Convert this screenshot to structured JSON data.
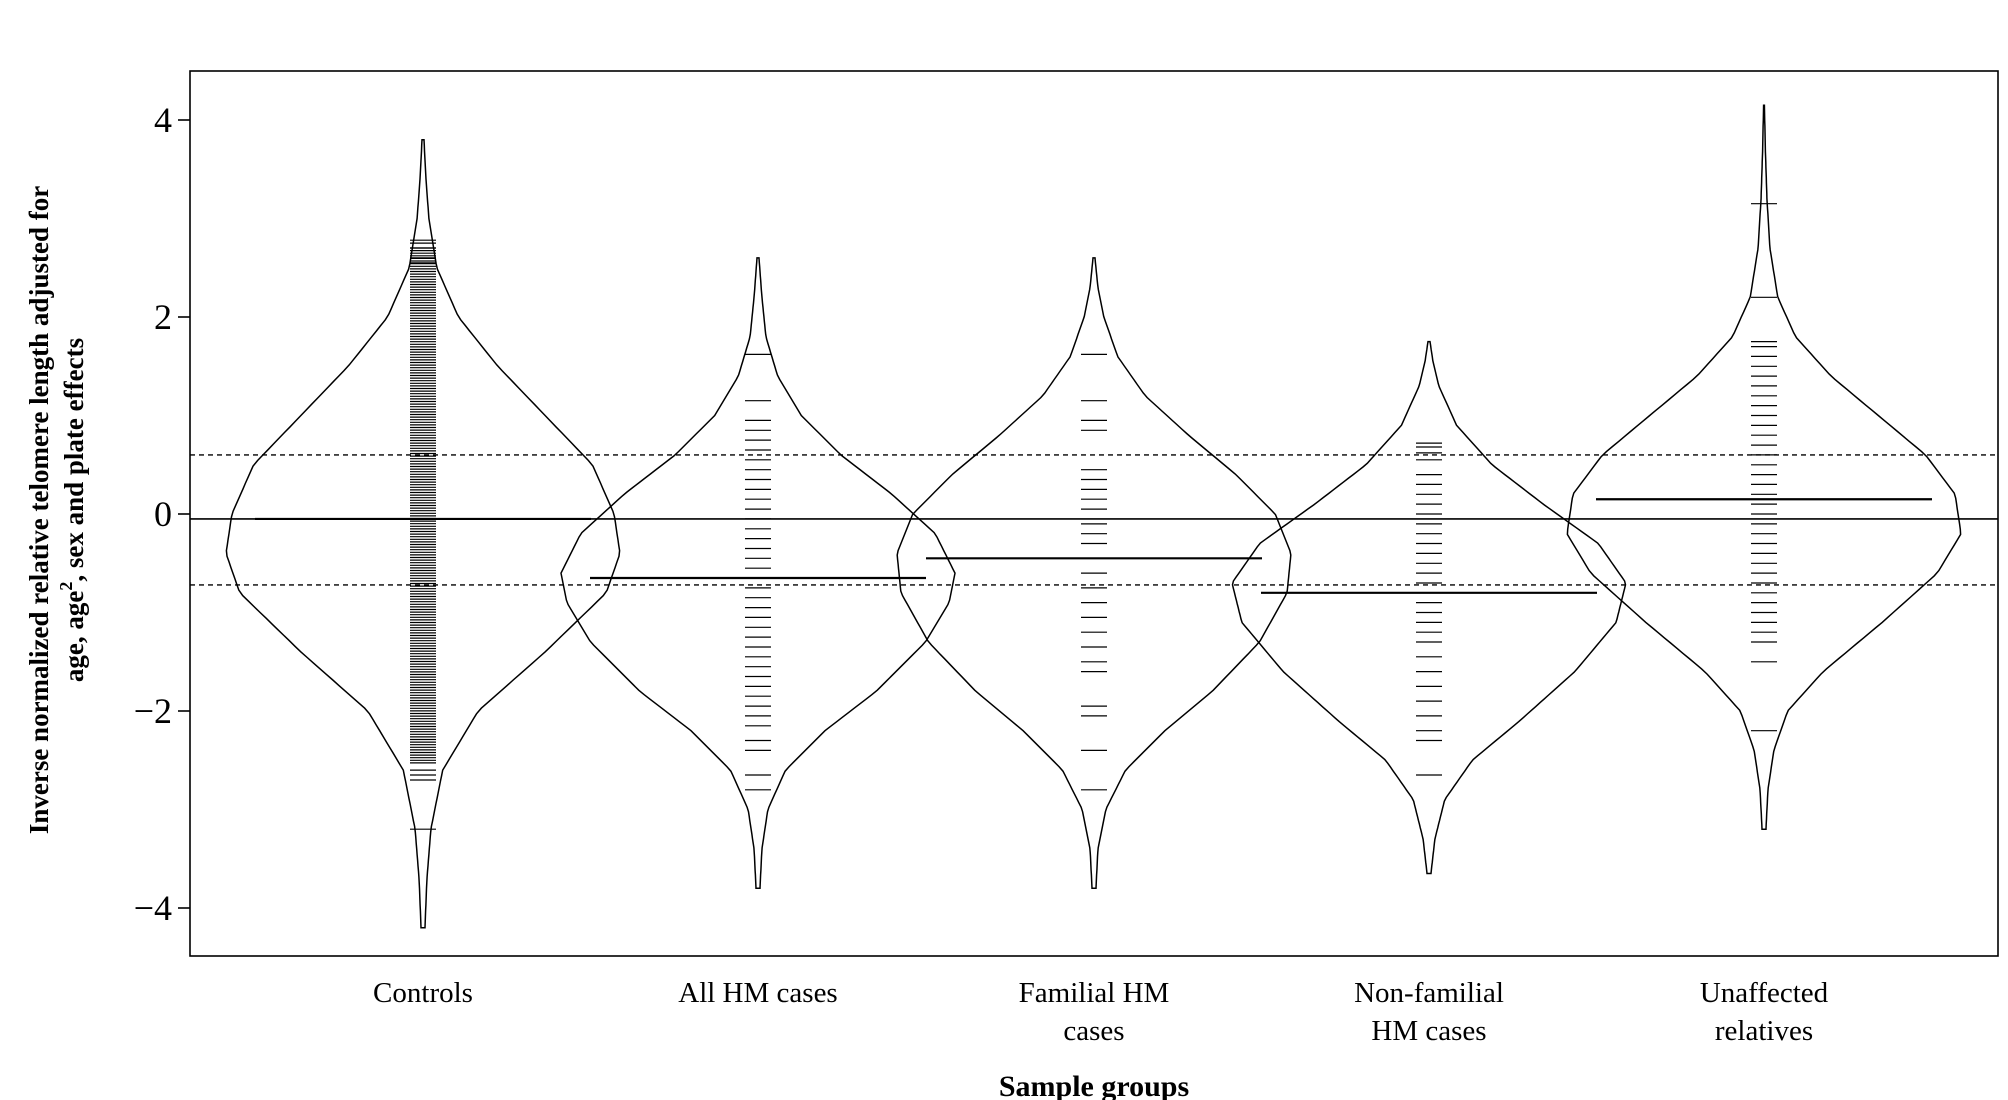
{
  "chart_data": {
    "type": "beanplot",
    "xlabel": "Sample groups",
    "ylabel_line1": "Inverse normalized relative telomere length adjusted for",
    "ylabel_line2_a": "age, age",
    "ylabel_line2_sup": "2",
    "ylabel_line2_b": ", sex and plate effects",
    "ylim": [
      -4.5,
      4.5
    ],
    "yticks": [
      4,
      2,
      0,
      -2,
      -4
    ],
    "ytick_labels": [
      "4",
      "2",
      "0",
      "−2",
      "−4"
    ],
    "overall_mean": -0.05,
    "reference_lines": [
      0.6,
      -0.72
    ],
    "grid": false,
    "groups": [
      {
        "label_lines": [
          "Controls"
        ],
        "mean": -0.05,
        "min": -4.2,
        "max": 3.8,
        "width": 1.0,
        "density": [
          [
            -4.2,
            0.01
          ],
          [
            -3.7,
            0.02
          ],
          [
            -3.2,
            0.04
          ],
          [
            -2.6,
            0.1
          ],
          [
            -2.0,
            0.28
          ],
          [
            -1.4,
            0.62
          ],
          [
            -0.8,
            0.93
          ],
          [
            -0.4,
            1.0
          ],
          [
            0.0,
            0.97
          ],
          [
            0.5,
            0.86
          ],
          [
            1.0,
            0.62
          ],
          [
            1.5,
            0.38
          ],
          [
            2.0,
            0.18
          ],
          [
            2.5,
            0.07
          ],
          [
            3.0,
            0.03
          ],
          [
            3.4,
            0.015
          ],
          [
            3.8,
            0.005
          ]
        ],
        "values": [
          2.78,
          2.75,
          2.7,
          2.6,
          2.55,
          -2.6,
          -2.65,
          -2.7,
          -3.2
        ]
      },
      {
        "label_lines": [
          "All HM cases"
        ],
        "mean": -0.65,
        "min": -3.8,
        "max": 2.6,
        "width": 1.0,
        "density": [
          [
            -3.8,
            0.01
          ],
          [
            -3.4,
            0.02
          ],
          [
            -3.0,
            0.05
          ],
          [
            -2.6,
            0.14
          ],
          [
            -2.2,
            0.34
          ],
          [
            -1.8,
            0.6
          ],
          [
            -1.3,
            0.85
          ],
          [
            -0.9,
            0.97
          ],
          [
            -0.6,
            1.0
          ],
          [
            -0.2,
            0.9
          ],
          [
            0.2,
            0.68
          ],
          [
            0.6,
            0.42
          ],
          [
            1.0,
            0.22
          ],
          [
            1.4,
            0.1
          ],
          [
            1.8,
            0.04
          ],
          [
            2.2,
            0.02
          ],
          [
            2.6,
            0.005
          ]
        ],
        "values": [
          1.62,
          1.15,
          0.95,
          0.85,
          0.75,
          0.65,
          0.55,
          0.45,
          0.35,
          0.25,
          0.15,
          0.05,
          -0.05,
          -0.15,
          -0.25,
          -0.35,
          -0.45,
          -0.55,
          -0.65,
          -0.75,
          -0.85,
          -0.95,
          -1.05,
          -1.15,
          -1.25,
          -1.35,
          -1.45,
          -1.55,
          -1.65,
          -1.75,
          -1.85,
          -1.95,
          -2.05,
          -2.15,
          -2.3,
          -2.4,
          -2.65,
          -2.8
        ]
      },
      {
        "label_lines": [
          "Familial HM",
          "cases"
        ],
        "mean": -0.45,
        "min": -3.8,
        "max": 2.6,
        "width": 1.0,
        "density": [
          [
            -3.8,
            0.01
          ],
          [
            -3.4,
            0.02
          ],
          [
            -3.0,
            0.06
          ],
          [
            -2.6,
            0.16
          ],
          [
            -2.2,
            0.36
          ],
          [
            -1.8,
            0.6
          ],
          [
            -1.3,
            0.84
          ],
          [
            -0.8,
            0.98
          ],
          [
            -0.4,
            1.0
          ],
          [
            0.0,
            0.92
          ],
          [
            0.4,
            0.72
          ],
          [
            0.8,
            0.48
          ],
          [
            1.2,
            0.26
          ],
          [
            1.6,
            0.12
          ],
          [
            2.0,
            0.05
          ],
          [
            2.3,
            0.02
          ],
          [
            2.6,
            0.005
          ]
        ],
        "values": [
          1.62,
          1.15,
          0.95,
          0.85,
          0.45,
          0.35,
          0.25,
          0.15,
          0.05,
          -0.1,
          -0.2,
          -0.3,
          -0.45,
          -0.6,
          -0.75,
          -0.9,
          -1.05,
          -1.2,
          -1.35,
          -1.5,
          -1.6,
          -1.95,
          -2.05,
          -2.4,
          -2.8
        ]
      },
      {
        "label_lines": [
          "Non-familial",
          "HM cases"
        ],
        "mean": -0.8,
        "min": -3.65,
        "max": 1.75,
        "width": 1.0,
        "density": [
          [
            -3.65,
            0.01
          ],
          [
            -3.3,
            0.03
          ],
          [
            -2.9,
            0.08
          ],
          [
            -2.5,
            0.22
          ],
          [
            -2.1,
            0.46
          ],
          [
            -1.6,
            0.74
          ],
          [
            -1.1,
            0.95
          ],
          [
            -0.7,
            1.0
          ],
          [
            -0.3,
            0.86
          ],
          [
            0.1,
            0.58
          ],
          [
            0.5,
            0.32
          ],
          [
            0.9,
            0.14
          ],
          [
            1.3,
            0.05
          ],
          [
            1.55,
            0.02
          ],
          [
            1.75,
            0.005
          ]
        ],
        "values": [
          0.72,
          0.68,
          0.62,
          0.55,
          0.4,
          0.3,
          0.2,
          0.1,
          0.0,
          -0.1,
          -0.2,
          -0.3,
          -0.4,
          -0.5,
          -0.6,
          -0.7,
          -0.8,
          -0.9,
          -1.0,
          -1.1,
          -1.2,
          -1.3,
          -1.45,
          -1.6,
          -1.75,
          -1.9,
          -2.05,
          -2.2,
          -2.3,
          -2.65
        ]
      },
      {
        "label_lines": [
          "Unaffected",
          "relatives"
        ],
        "mean": 0.15,
        "min": -3.2,
        "max": 4.15,
        "width": 1.0,
        "density": [
          [
            -3.2,
            0.01
          ],
          [
            -2.8,
            0.02
          ],
          [
            -2.4,
            0.05
          ],
          [
            -2.0,
            0.12
          ],
          [
            -1.6,
            0.3
          ],
          [
            -1.1,
            0.6
          ],
          [
            -0.6,
            0.88
          ],
          [
            -0.2,
            1.0
          ],
          [
            0.2,
            0.97
          ],
          [
            0.6,
            0.82
          ],
          [
            1.0,
            0.58
          ],
          [
            1.4,
            0.34
          ],
          [
            1.8,
            0.16
          ],
          [
            2.2,
            0.07
          ],
          [
            2.7,
            0.03
          ],
          [
            3.2,
            0.015
          ],
          [
            3.7,
            0.007
          ],
          [
            4.15,
            0.002
          ]
        ],
        "values": [
          3.15,
          2.2,
          1.75,
          1.7,
          1.6,
          1.5,
          1.4,
          1.3,
          1.2,
          1.1,
          1.0,
          0.9,
          0.8,
          0.7,
          0.6,
          0.5,
          0.4,
          0.3,
          0.2,
          0.1,
          0.0,
          -0.1,
          -0.2,
          -0.3,
          -0.4,
          -0.5,
          -0.6,
          -0.7,
          -0.8,
          -0.9,
          -1.0,
          -1.1,
          -1.2,
          -1.3,
          -1.5,
          -2.2
        ]
      }
    ]
  }
}
